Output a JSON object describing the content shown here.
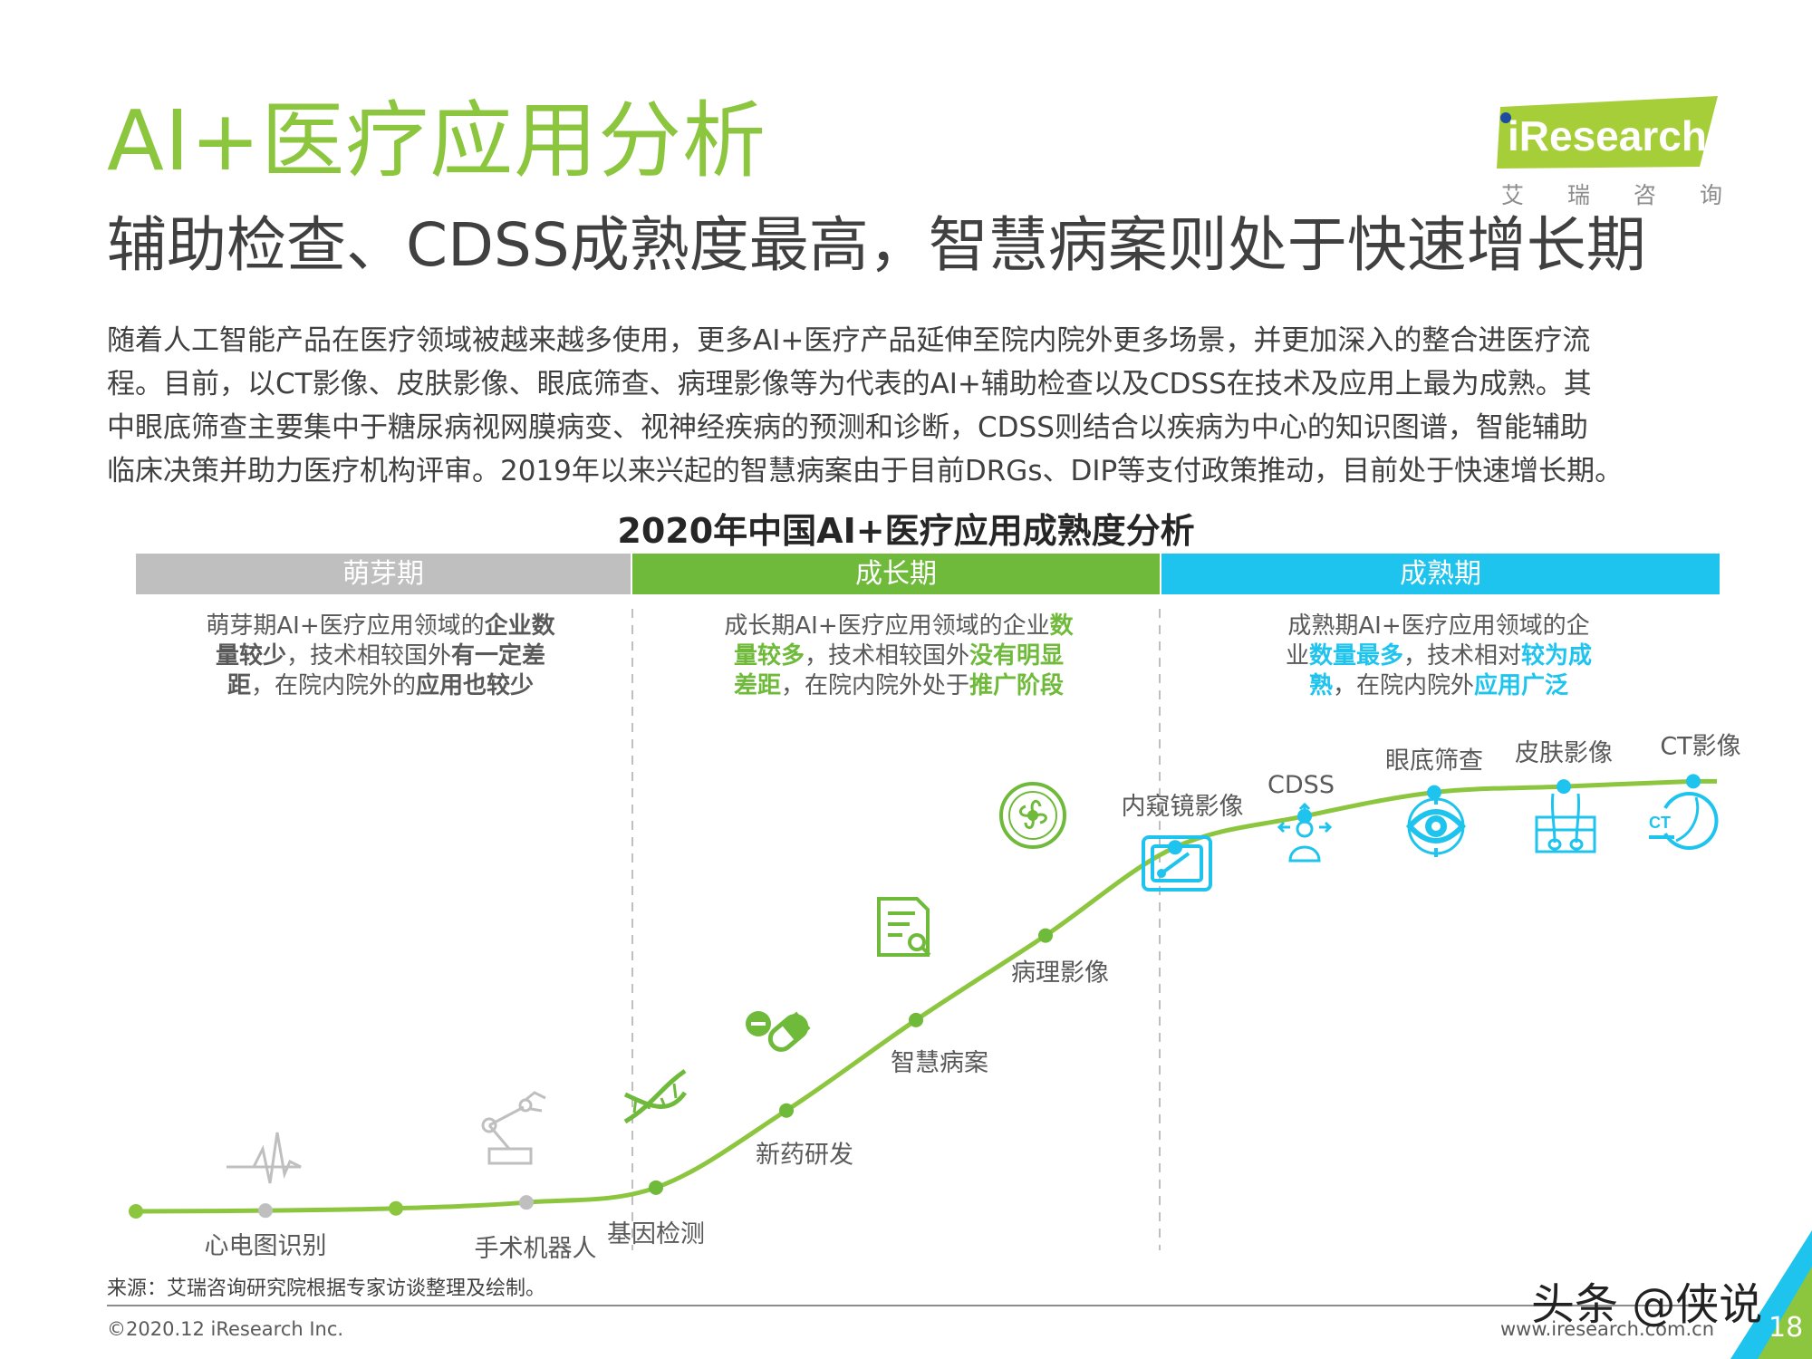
{
  "title": "AI+医疗应用分析",
  "subtitle": "辅助检查、CDSS成熟度最高，智慧病案则处于快速增长期",
  "intro": [
    "随着人工智能产品在医疗领域被越来越多使用，更多AI+医疗产品延伸至院内院外更多场景，并更加深入的整合进医疗流",
    "程。目前，以CT影像、皮肤影像、眼底筛查、病理影像等为代表的AI+辅助检查以及CDSS在技术及应用上最为成熟。其",
    "中眼底筛查主要集中于糖尿病视网膜病变、视神经疾病的预测和诊断，CDSS则结合以疾病为中心的知识图谱，智能辅助",
    "临床决策并助力医疗机构评审。2019年以来兴起的智慧病案由于目前DRGs、DIP等支付政策推动，目前处于快速增长期。"
  ],
  "logo": {
    "brand": "iResearch",
    "sub": [
      "艾",
      "瑞",
      "咨",
      "询"
    ]
  },
  "chart_title": "2020年中国AI+医疗应用成熟度分析",
  "phases": [
    {
      "name": "萌芽期",
      "color": "#bfbfbf",
      "desc": [
        {
          "t": "萌芽期AI+医疗应用领域的"
        },
        {
          "t": "企业数",
          "b": true
        },
        {
          "br": true
        },
        {
          "t": "量较少",
          "b": true
        },
        {
          "t": "，技术相较国外"
        },
        {
          "t": "有一定差",
          "b": true
        },
        {
          "br": true
        },
        {
          "t": "距",
          "b": true
        },
        {
          "t": "，在院内院外的"
        },
        {
          "t": "应用也较少",
          "b": true
        }
      ],
      "highlight": "#595959"
    },
    {
      "name": "成长期",
      "color": "#6fba3a",
      "desc": [
        {
          "t": "成长期AI+医疗应用领域的企业"
        },
        {
          "t": "数",
          "b": true
        },
        {
          "br": true
        },
        {
          "t": "量较多",
          "b": true
        },
        {
          "t": "，技术相较国外"
        },
        {
          "t": "没有明显",
          "b": true
        },
        {
          "br": true
        },
        {
          "t": "差距",
          "b": true
        },
        {
          "t": "，在院内院外处于"
        },
        {
          "t": "推广阶段",
          "b": true
        }
      ],
      "highlight": "#6fba3a"
    },
    {
      "name": "成熟期",
      "color": "#1fc4ee",
      "desc": [
        {
          "t": "成熟期AI+医疗应用领域的企"
        },
        {
          "br": true
        },
        {
          "t": "业"
        },
        {
          "t": "数量最多",
          "b": true
        },
        {
          "t": "，技术相对"
        },
        {
          "t": "较为成",
          "b": true
        },
        {
          "br": true
        },
        {
          "t": "熟",
          "b": true
        },
        {
          "t": "，在院内院外"
        },
        {
          "t": "应用广泛",
          "b": true
        }
      ],
      "highlight": "#1fc4ee"
    }
  ],
  "chart_data": {
    "type": "line",
    "title": "2020年中国AI+医疗应用成熟度分析",
    "x": [
      "",
      "心电图识别",
      "",
      "手术机器人",
      "基因检测",
      "新药研发",
      "智慧病案",
      "病理影像",
      "内窥镜影像",
      "CDSS",
      "眼底筛查",
      "皮肤影像",
      "CT影像"
    ],
    "maturity": [
      0,
      0.1,
      0.4,
      1.2,
      3.2,
      13.6,
      25.8,
      37.2,
      49.1,
      53.3,
      56.5,
      57.3,
      58
    ],
    "phase_of_point": [
      "萌芽期",
      "萌芽期",
      "萌芽期",
      "萌芽期",
      "成长期",
      "成长期",
      "成长期",
      "成长期",
      "成熟期",
      "成熟期",
      "成熟期",
      "成熟期",
      "成熟期"
    ],
    "ylim": [
      0,
      60
    ]
  },
  "colors": {
    "lime": "#8cc63f",
    "grey": "#bfbfbf",
    "green": "#6fba3a",
    "cyan": "#1fc4ee"
  },
  "footer": {
    "source": "来源：艾瑞咨询研究院根据专家访谈整理及绘制。",
    "copyright": "©2020.12 iResearch Inc.",
    "url": "www.iresearch.com.cn",
    "page": "18",
    "watermark": "头条 @侠说"
  }
}
